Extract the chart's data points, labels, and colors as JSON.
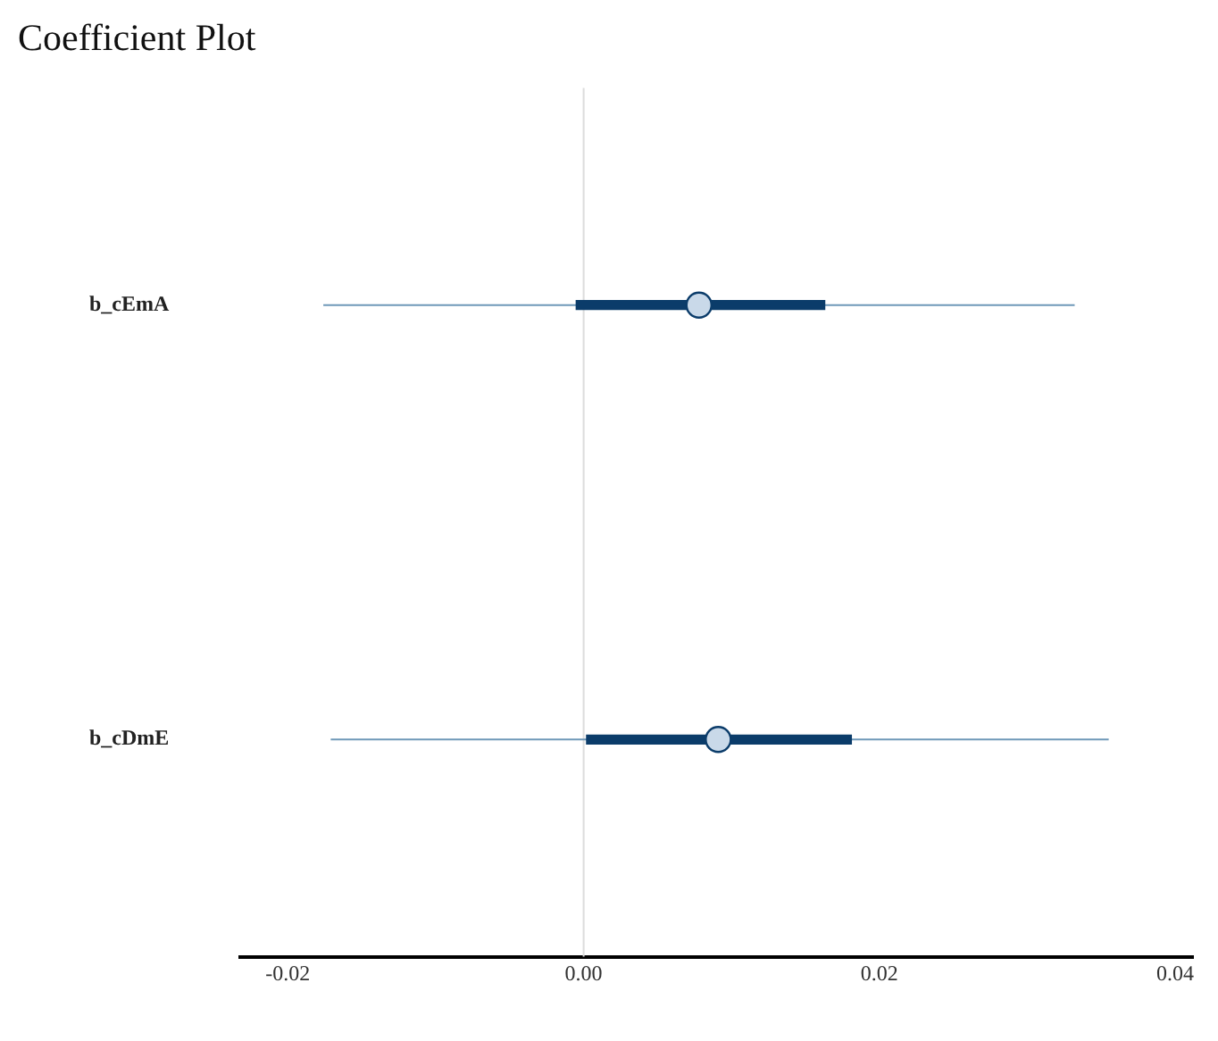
{
  "chart_data": {
    "type": "scatter",
    "orientation": "horizontal",
    "title": "Coefficient Plot",
    "categories": [
      "b_cEmA",
      "b_cDmE"
    ],
    "series": [
      {
        "type": "bar",
        "color": "#0b3c6a",
        "base": [
          -0.0005,
          0.0002
        ],
        "values": [
          0.0168,
          0.0179
        ]
      },
      {
        "color": "#c9d9e9",
        "marker": "circle",
        "values": [
          0.0078,
          0.0091
        ],
        "errors": [
          [
            -0.0176,
            0.0332
          ],
          [
            -0.0171,
            0.0355
          ]
        ]
      }
    ],
    "xlim": [
      -0.0232,
      0.0412
    ],
    "xticks": [
      -0.02,
      {
        "value": 0,
        "label": "0.00"
      },
      0.02,
      0.04
    ],
    "ref_lines": [
      {
        "axis": "x",
        "value": 0,
        "color": "#dcdcdc"
      }
    ],
    "grid": false,
    "legend": false
  }
}
